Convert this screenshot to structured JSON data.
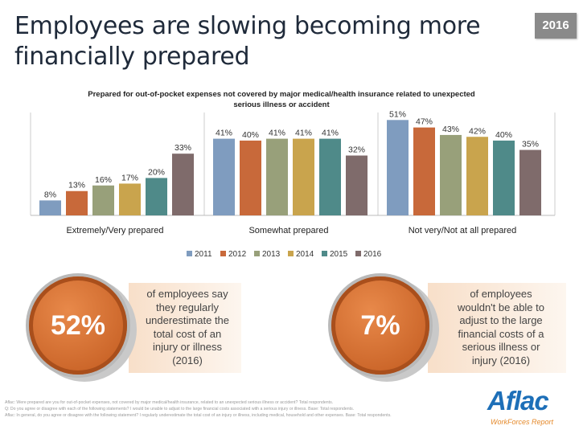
{
  "page": {
    "title": "Employees are slowing becoming more financially prepared",
    "year_badge": "2016"
  },
  "chart_data": {
    "type": "bar",
    "title": "Prepared for out-of-pocket expenses not covered by major medical/health insurance related to unexpected serious illness or accident",
    "categories": [
      "Extremely/Very prepared",
      "Somewhat prepared",
      "Not very/Not at all prepared"
    ],
    "series": [
      {
        "name": "2011",
        "color": "#7f9cbf",
        "values": [
          8,
          41,
          51
        ]
      },
      {
        "name": "2012",
        "color": "#c8693a",
        "values": [
          13,
          40,
          47
        ]
      },
      {
        "name": "2013",
        "color": "#98a07a",
        "values": [
          16,
          41,
          43
        ]
      },
      {
        "name": "2014",
        "color": "#c9a44d",
        "values": [
          17,
          41,
          42
        ]
      },
      {
        "name": "2015",
        "color": "#4f8a89",
        "values": [
          20,
          41,
          40
        ]
      },
      {
        "name": "2016",
        "color": "#7f6b6b",
        "values": [
          33,
          32,
          35
        ]
      }
    ],
    "ylim": [
      0,
      55
    ],
    "grid": false,
    "legend_position": "bottom",
    "data_label_suffix": "%"
  },
  "callouts": [
    {
      "value": "52%",
      "text_lines": [
        "of employees say",
        "they regularly",
        "underestimate the",
        "total cost of an",
        "injury or illness",
        "(2016)"
      ]
    },
    {
      "value": "7%",
      "text_lines": [
        "of employees",
        "wouldn't be able to",
        "adjust to the large",
        "financial costs of a",
        "serious illness or",
        "injury (2016)"
      ]
    }
  ],
  "footnotes": [
    "Aflac: Were prepared are you for out-of-pocket expenses, not covered by major medical/health insurance, related to an unexpected serious illness or accident? Total respondents.",
    "Q: Do you agree or disagree with each of the following statements? I would be unable to adjust to the large financial costs associated with a serious injury or illness. Base: Total respondents.",
    "Aflac: In general, do you agree or disagree with the following statement? I regularly underestimate the total cost of an injury or illness, including medical, household and other expenses. Base: Total respondents."
  ],
  "logo": {
    "brand": "Aflac",
    "sub": "WorkForces Report"
  }
}
